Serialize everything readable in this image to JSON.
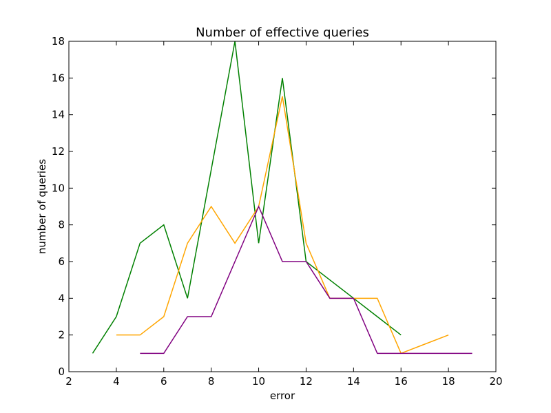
{
  "chart_data": {
    "type": "line",
    "title": "Number of effective queries",
    "xlabel": "error",
    "ylabel": "number of queries",
    "xlim": [
      2,
      20
    ],
    "ylim": [
      0,
      18
    ],
    "xticks": [
      2,
      4,
      6,
      8,
      10,
      12,
      14,
      16,
      18,
      20
    ],
    "yticks": [
      0,
      2,
      4,
      6,
      8,
      10,
      12,
      14,
      16,
      18
    ],
    "grid": false,
    "legend": "none",
    "series": [
      {
        "color": "#008000",
        "points": [
          {
            "x": 3,
            "y": 1
          },
          {
            "x": 4,
            "y": 3
          },
          {
            "x": 5,
            "y": 7
          },
          {
            "x": 6,
            "y": 8
          },
          {
            "x": 7,
            "y": 4
          },
          {
            "x": 8,
            "y": 11
          },
          {
            "x": 9,
            "y": 18
          },
          {
            "x": 10,
            "y": 7
          },
          {
            "x": 11,
            "y": 16
          },
          {
            "x": 12,
            "y": 6
          },
          {
            "x": 13,
            "y": 5
          },
          {
            "x": 14,
            "y": 4
          },
          {
            "x": 15,
            "y": 3
          },
          {
            "x": 16,
            "y": 2
          }
        ]
      },
      {
        "color": "#FFA500",
        "points": [
          {
            "x": 4,
            "y": 2
          },
          {
            "x": 5,
            "y": 2
          },
          {
            "x": 6,
            "y": 3
          },
          {
            "x": 7,
            "y": 7
          },
          {
            "x": 8,
            "y": 9
          },
          {
            "x": 9,
            "y": 7
          },
          {
            "x": 10,
            "y": 9
          },
          {
            "x": 11,
            "y": 15
          },
          {
            "x": 12,
            "y": 7
          },
          {
            "x": 13,
            "y": 4
          },
          {
            "x": 14,
            "y": 4
          },
          {
            "x": 15,
            "y": 4
          },
          {
            "x": 16,
            "y": 1
          },
          {
            "x": 17,
            "y": 1.5
          },
          {
            "x": 18,
            "y": 2
          }
        ]
      },
      {
        "color": "#800080",
        "points": [
          {
            "x": 5,
            "y": 1
          },
          {
            "x": 6,
            "y": 1
          },
          {
            "x": 7,
            "y": 3
          },
          {
            "x": 8,
            "y": 3
          },
          {
            "x": 9,
            "y": 6
          },
          {
            "x": 10,
            "y": 9
          },
          {
            "x": 11,
            "y": 6
          },
          {
            "x": 12,
            "y": 6
          },
          {
            "x": 13,
            "y": 4
          },
          {
            "x": 14,
            "y": 4
          },
          {
            "x": 15,
            "y": 1
          },
          {
            "x": 16,
            "y": 1
          },
          {
            "x": 17,
            "y": 1
          },
          {
            "x": 18,
            "y": 1
          },
          {
            "x": 19,
            "y": 1
          }
        ]
      }
    ]
  }
}
